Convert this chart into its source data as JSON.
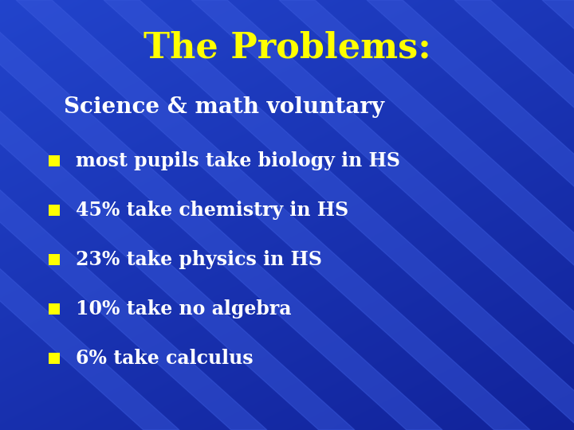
{
  "title": "The Problems:",
  "title_color": "#FFFF00",
  "title_fontsize": 32,
  "subtitle": "Science & math voluntary",
  "subtitle_color": "#FFFFFF",
  "subtitle_fontsize": 20,
  "bullet_color": "#FFFF00",
  "bullet_text_color": "#FFFFFF",
  "bullet_fontsize": 17,
  "bullets": [
    "most pupils take biology in HS",
    "45% take chemistry in HS",
    "23% take physics in HS",
    "10% take no algebra",
    "6% take calculus"
  ],
  "bg_color": "#2244CC",
  "stripe_color_light": "#3355DD",
  "stripe_color_dark": "#1133AA",
  "fig_width": 7.2,
  "fig_height": 5.4
}
